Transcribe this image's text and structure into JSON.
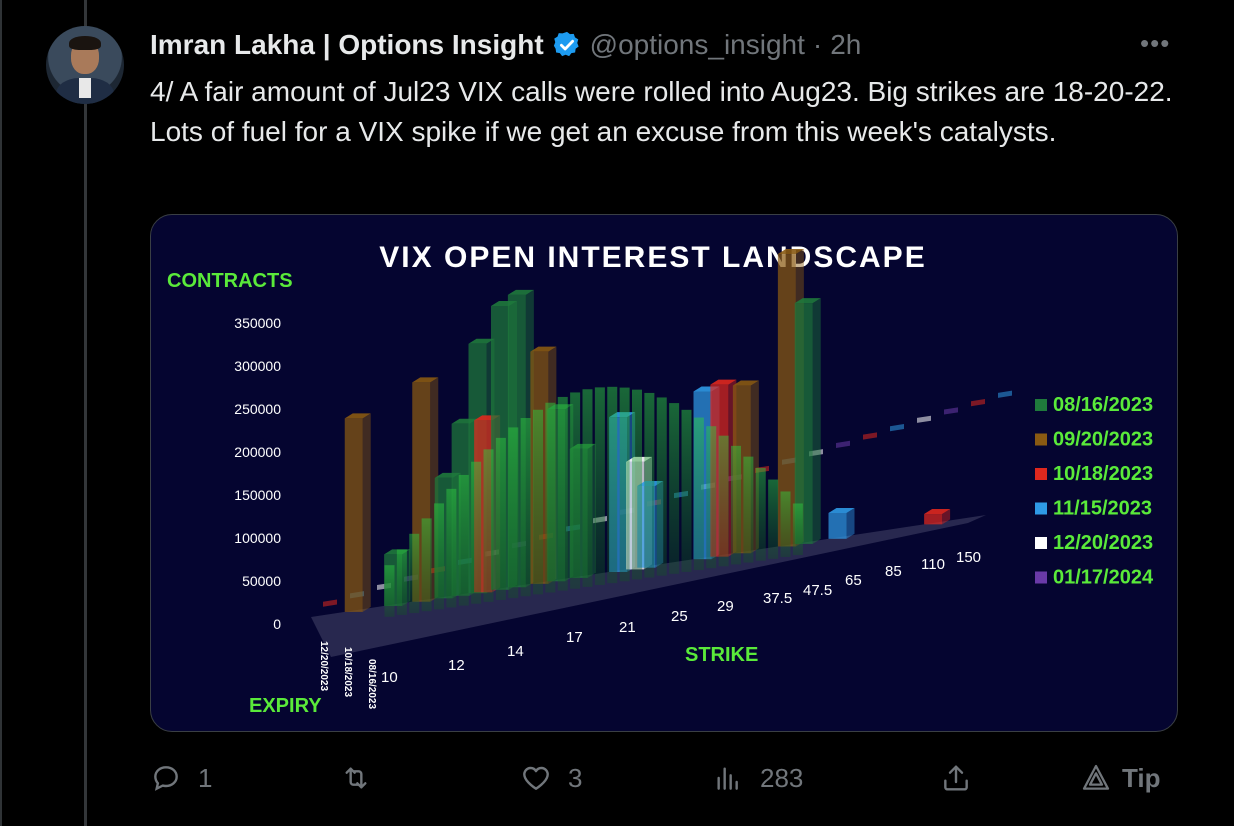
{
  "tweet": {
    "author_name": "Imran Lakha | Options Insight",
    "handle": "@options_insight",
    "separator": "·",
    "time": "2h",
    "more_label": "•••",
    "text": "4/ A fair amount of Jul23 VIX calls were rolled into Aug23.  Big strikes are 18-20-22. Lots of fuel for a VIX spike if we get an excuse from this week's catalysts."
  },
  "actions": {
    "reply_count": "1",
    "retweet_count": "",
    "like_count": "3",
    "views_count": "283",
    "tip_label": "Tip"
  },
  "colors": {
    "accent": "#1d9bf0",
    "muted": "#71767b",
    "chart_bg": "#050530",
    "label_green": "#5aea3a"
  },
  "chart_data": {
    "type": "bar",
    "title": "VIX OPEN INTEREST LANDSCAPE",
    "ylabel": "CONTRACTS",
    "xlabel": "STRIKE",
    "zlabel": "EXPIRY",
    "y_ticks": [
      "350000",
      "300000",
      "250000",
      "200000",
      "150000",
      "100000",
      "50000",
      "0"
    ],
    "ylim": [
      0,
      350000
    ],
    "strike_labels": [
      "10",
      "12",
      "14",
      "17",
      "21",
      "25",
      "29",
      "37.5",
      "47.5",
      "65",
      "85",
      "110",
      "150"
    ],
    "expiry_labels": [
      "12/20/2023",
      "10/18/2023",
      "08/16/2023"
    ],
    "legend": [
      {
        "label": "08/16/2023",
        "color": "#1f7a3c"
      },
      {
        "label": "09/20/2023",
        "color": "#8a5a12"
      },
      {
        "label": "10/18/2023",
        "color": "#e0281e"
      },
      {
        "label": "11/15/2023",
        "color": "#2f9ae6"
      },
      {
        "label": "12/20/2023",
        "color": "#ffffff"
      },
      {
        "label": "01/17/2024",
        "color": "#6a3aa8"
      }
    ],
    "legend_position": "right",
    "bars": [
      {
        "series": "09/20/2023",
        "strike_index": 0.6,
        "value": 225000
      },
      {
        "series": "08/16/2023",
        "strike_index": 1.3,
        "value": 60000
      },
      {
        "series": "09/20/2023",
        "strike_index": 1.8,
        "value": 255000
      },
      {
        "series": "08/16/2023",
        "strike_index": 2.2,
        "value": 140000
      },
      {
        "series": "08/16/2023",
        "strike_index": 2.5,
        "value": 200000
      },
      {
        "series": "08/16/2023",
        "strike_index": 2.8,
        "value": 290000
      },
      {
        "series": "10/18/2023",
        "strike_index": 2.9,
        "value": 200000
      },
      {
        "series": "08/16/2023",
        "strike_index": 3.2,
        "value": 330000
      },
      {
        "series": "08/16/2023",
        "strike_index": 3.5,
        "value": 340000
      },
      {
        "series": "09/20/2023",
        "strike_index": 3.9,
        "value": 270000
      },
      {
        "series": "08/16/2023",
        "strike_index": 4.2,
        "value": 200000
      },
      {
        "series": "08/16/2023",
        "strike_index": 4.6,
        "value": 150000
      },
      {
        "series": "11/15/2023",
        "strike_index": 5.3,
        "value": 180000
      },
      {
        "series": "12/20/2023",
        "strike_index": 5.6,
        "value": 125000
      },
      {
        "series": "11/15/2023",
        "strike_index": 5.8,
        "value": 95000
      },
      {
        "series": "11/15/2023",
        "strike_index": 6.8,
        "value": 195000
      },
      {
        "series": "10/18/2023",
        "strike_index": 7.1,
        "value": 200000
      },
      {
        "series": "09/20/2023",
        "strike_index": 7.5,
        "value": 195000
      },
      {
        "series": "09/20/2023",
        "strike_index": 8.3,
        "value": 340000
      },
      {
        "series": "08/16/2023",
        "strike_index": 8.6,
        "value": 280000
      },
      {
        "series": "11/15/2023",
        "strike_index": 9.2,
        "value": 30000
      },
      {
        "series": "10/18/2023",
        "strike_index": 10.9,
        "value": 12000
      }
    ]
  }
}
